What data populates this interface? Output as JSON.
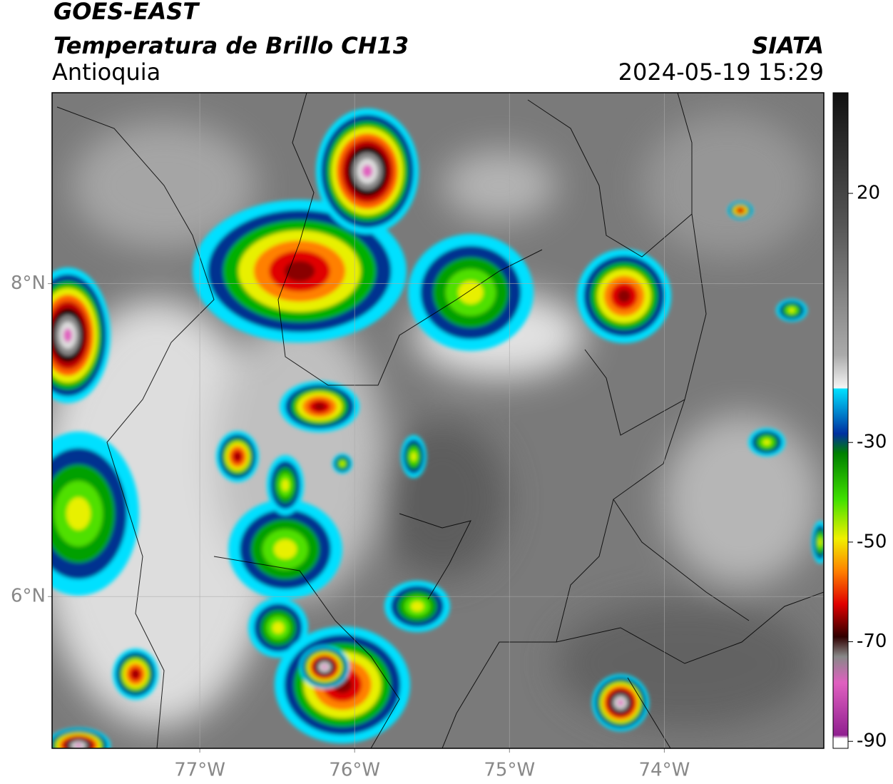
{
  "header": {
    "satellite": "GOES-EAST",
    "product": "Temperatura de Brillo CH13",
    "region": "Antioquia",
    "source": "SIATA",
    "datetime": "2024-05-19 15:29"
  },
  "map": {
    "lonlim": [
      -77.954,
      -72.97
    ],
    "latlim": [
      5.03,
      9.22
    ],
    "lonticks": [
      {
        "value": -77,
        "label": "77°W"
      },
      {
        "value": -76,
        "label": "76°W"
      },
      {
        "value": -75,
        "label": "75°W"
      },
      {
        "value": -74,
        "label": "74°W"
      }
    ],
    "latticks": [
      {
        "value": 8,
        "label": "8°N"
      },
      {
        "value": 6,
        "label": "6°N"
      }
    ]
  },
  "colorbar": {
    "lim": [
      -91.4,
      40.2
    ],
    "ticks": [
      20,
      -30,
      -50,
      -70,
      -90
    ]
  }
}
